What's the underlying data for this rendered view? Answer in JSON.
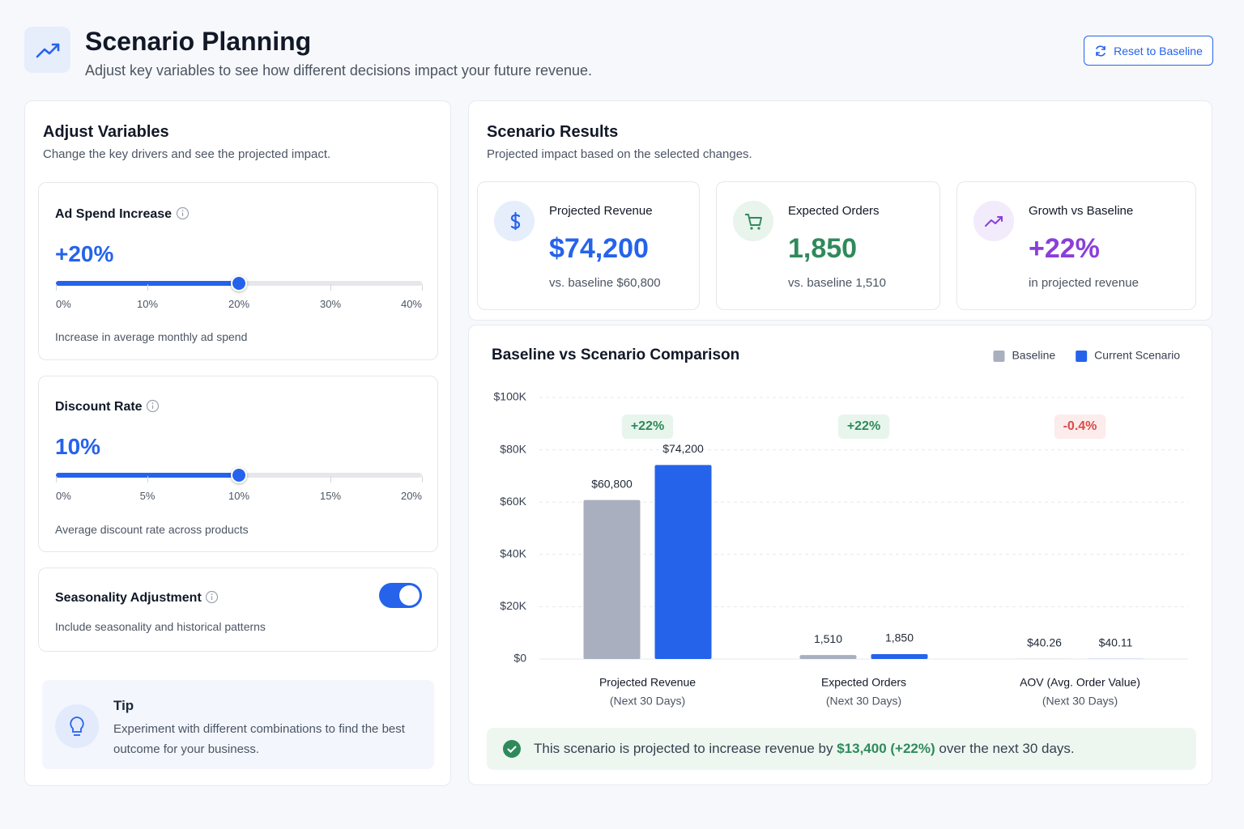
{
  "header": {
    "title": "Scenario Planning",
    "subtitle": "Adjust key variables to see how different decisions impact your future revenue.",
    "reset_button": "Reset to Baseline"
  },
  "variables": {
    "title": "Adjust Variables",
    "subtitle": "Change the key drivers and see the projected impact.",
    "ad_spend": {
      "label": "Ad Spend Increase",
      "value": 20,
      "value_label": "+20%",
      "xlim": [
        0,
        40
      ],
      "ticks": [
        {
          "value": 0,
          "label": "0%"
        },
        {
          "value": 10,
          "label": "10%"
        },
        {
          "value": 20,
          "label": "20%"
        },
        {
          "value": 30,
          "label": "30%"
        },
        {
          "value": 40,
          "label": "40%"
        }
      ],
      "description": "Increase in average monthly ad spend"
    },
    "discount": {
      "label": "Discount Rate",
      "value": 10,
      "value_label": "10%",
      "xlim": [
        0,
        20
      ],
      "ticks": [
        {
          "value": 0,
          "label": "0%"
        },
        {
          "value": 5,
          "label": "5%"
        },
        {
          "value": 10,
          "label": "10%"
        },
        {
          "value": 15,
          "label": "15%"
        },
        {
          "value": 20,
          "label": "20%"
        }
      ],
      "description": "Average discount rate across products"
    },
    "seasonality": {
      "label": "Seasonality Adjustment",
      "enabled": true,
      "description": "Include seasonality and historical patterns"
    },
    "tip": {
      "title": "Tip",
      "text": "Experiment with different combinations to find the best outcome for your business."
    }
  },
  "results": {
    "title": "Scenario Results",
    "subtitle": "Projected impact based on the selected changes.",
    "cards": [
      {
        "label": "Projected Revenue",
        "value": "$74,200",
        "note": "vs. baseline $60,800"
      },
      {
        "label": "Expected Orders",
        "value": "1,850",
        "note": "vs. baseline 1,510"
      },
      {
        "label": "Growth vs Baseline",
        "value": "+22%",
        "note": "in projected revenue"
      }
    ]
  },
  "chart_data": {
    "type": "bar",
    "title": "Baseline vs Scenario Comparison",
    "categories": [
      "Projected Revenue",
      "Expected Orders",
      "AOV (Avg. Order Value)"
    ],
    "category_notes": [
      "(Next 30 Days)",
      "(Next 30 Days)",
      "(Next 30 Days)"
    ],
    "series": [
      {
        "name": "Baseline",
        "color": "#a9afbe",
        "values": [
          60800,
          1510,
          40.26
        ],
        "value_labels": [
          "$60,800",
          "1,510",
          "$40.26"
        ]
      },
      {
        "name": "Current Scenario",
        "color": "#2563eb",
        "values": [
          74200,
          1850,
          40.11
        ],
        "value_labels": [
          "$74,200",
          "1,850",
          "$40.11"
        ]
      }
    ],
    "change_labels": [
      "+22%",
      "+22%",
      "-0.4%"
    ],
    "ylim": [
      0,
      100000
    ],
    "yticks": [
      {
        "value": 0,
        "label": "$0"
      },
      {
        "value": 20000,
        "label": "$20K"
      },
      {
        "value": 40000,
        "label": "$40K"
      },
      {
        "value": 60000,
        "label": "$60K"
      },
      {
        "value": 80000,
        "label": "$80K"
      },
      {
        "value": 100000,
        "label": "$100K"
      }
    ],
    "grid": true,
    "legend": "top-right"
  },
  "summary": {
    "before": "This scenario is projected to increase revenue by ",
    "highlight": "$13,400 (+22%)",
    "after": " over the next 30 days."
  }
}
